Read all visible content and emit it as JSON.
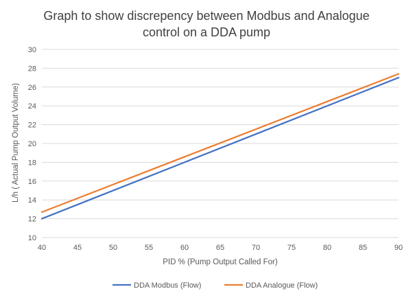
{
  "chart_data": {
    "type": "line",
    "title": [
      "Graph to show discrepency between Modbus and Analogue",
      "control on a DDA pump"
    ],
    "xlabel": "PID % (Pump Output Called For)",
    "ylabel": "L/h ( Actual Pump Output Volume)",
    "xlim": [
      40,
      90
    ],
    "ylim": [
      10,
      30
    ],
    "x_ticks": [
      40,
      45,
      50,
      55,
      60,
      65,
      70,
      75,
      80,
      85,
      90
    ],
    "y_ticks": [
      10,
      12,
      14,
      16,
      18,
      20,
      22,
      24,
      26,
      28,
      30
    ],
    "grid": "horizontal",
    "legend_position": "bottom",
    "x": [
      40,
      90
    ],
    "series": [
      {
        "name": "DDA Modbus (Flow)",
        "color": "#4472c4",
        "values": [
          12,
          27
        ]
      },
      {
        "name": "DDA Analogue (Flow)",
        "color": "#ed7d31",
        "values": [
          12.7,
          27.4
        ]
      }
    ]
  }
}
